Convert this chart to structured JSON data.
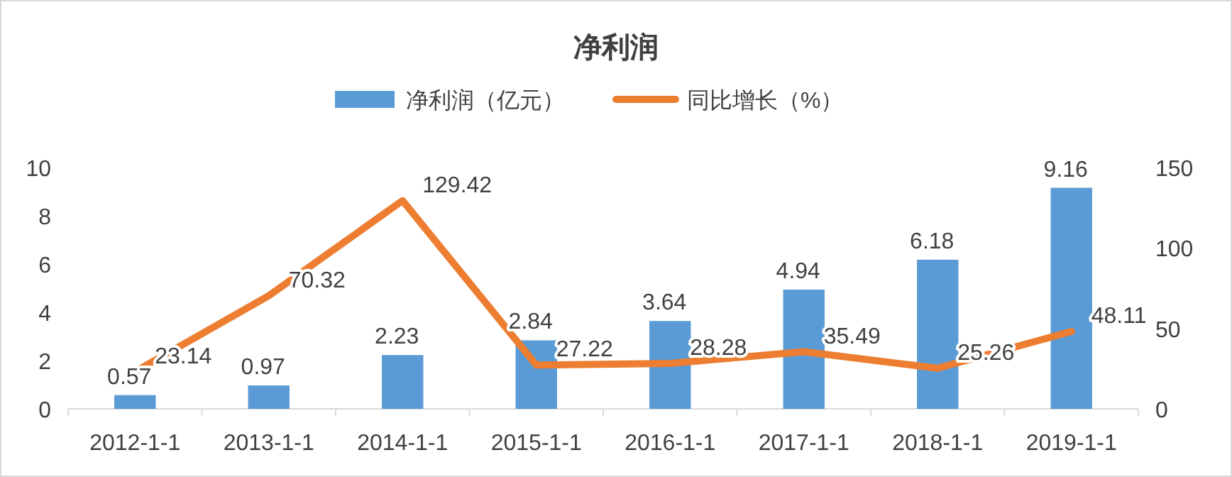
{
  "chart_data": {
    "type": "bar",
    "title": "净利润",
    "categories": [
      "2012-1-1",
      "2013-1-1",
      "2014-1-1",
      "2015-1-1",
      "2016-1-1",
      "2017-1-1",
      "2018-1-1",
      "2019-1-1"
    ],
    "series": [
      {
        "name": "净利润（亿元）",
        "color": "#5b9bd5",
        "values": [
          0.57,
          0.97,
          2.23,
          2.84,
          3.64,
          4.94,
          6.18,
          9.16
        ]
      },
      {
        "name": "同比增长（%）",
        "type": "line",
        "axis": "y2",
        "color": "#ed7d31",
        "values": [
          23.14,
          70.32,
          129.42,
          27.22,
          28.28,
          35.49,
          25.26,
          48.11
        ]
      }
    ],
    "ylim": [
      0,
      10
    ],
    "yticks": [
      0,
      2,
      4,
      6,
      8,
      10
    ],
    "y2lim": [
      0,
      150
    ],
    "y2ticks": [
      0,
      50,
      100,
      150
    ],
    "data_labels": true,
    "legend": "top",
    "grid": false,
    "marker": "none",
    "line_style": "solid"
  }
}
